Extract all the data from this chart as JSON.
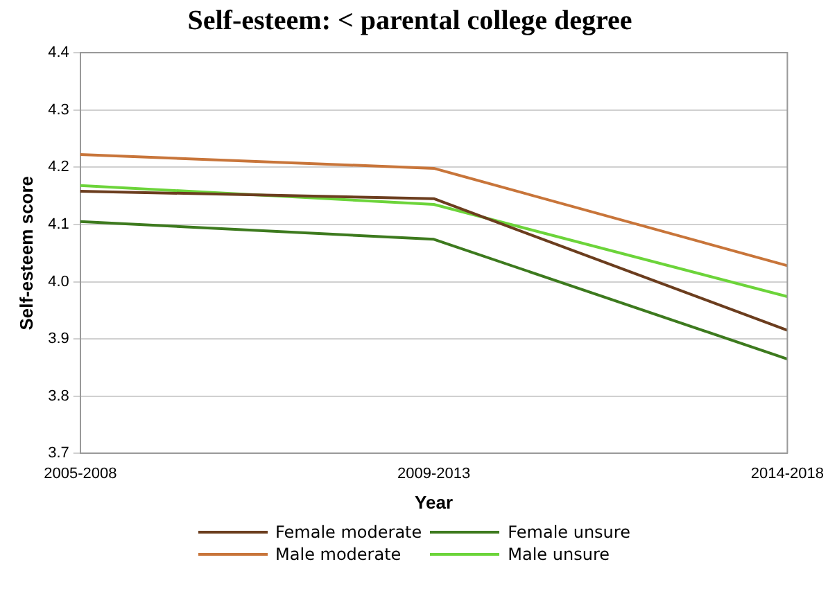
{
  "chart_data": {
    "type": "line",
    "title": "Self-esteem: < parental college degree",
    "xlabel": "Year",
    "ylabel": "Self-esteem score",
    "categories": [
      "2005-2008",
      "2009-2013",
      "2014-2018"
    ],
    "series": [
      {
        "name": "Female moderate",
        "color": "#6b3d1e",
        "values": [
          4.158,
          4.145,
          3.915
        ]
      },
      {
        "name": "Female unsure",
        "color": "#3d7a1e",
        "values": [
          4.105,
          4.074,
          3.865
        ]
      },
      {
        "name": "Male moderate",
        "color": "#c8753a",
        "values": [
          4.222,
          4.198,
          4.028
        ]
      },
      {
        "name": "Male unsure",
        "color": "#6cd43a",
        "values": [
          4.168,
          4.135,
          3.974
        ]
      }
    ],
    "ylim": [
      3.7,
      4.4
    ],
    "yticks": [
      3.7,
      3.8,
      3.9,
      {
        "value": 4,
        "label": "4.0"
      },
      4.1,
      4.2,
      4.3,
      4.4
    ],
    "grid": "y",
    "legend": "bottom",
    "marker": "none",
    "line_style": "solid"
  }
}
